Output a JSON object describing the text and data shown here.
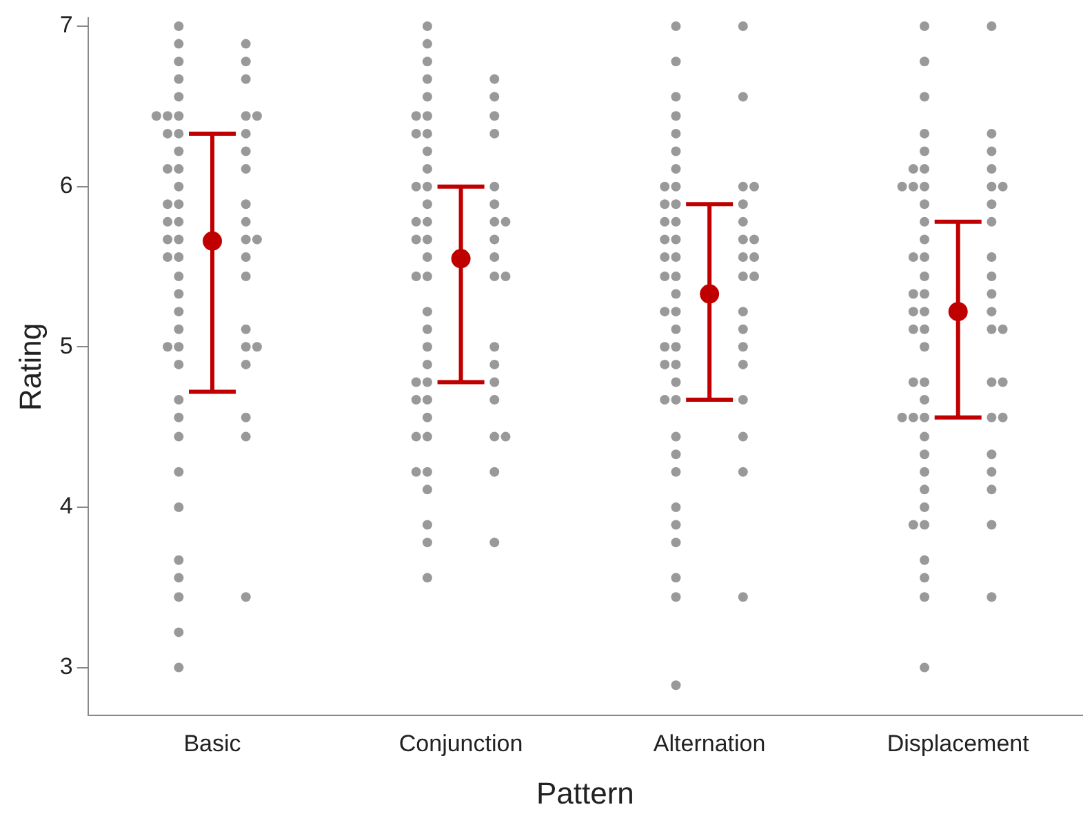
{
  "chart_data": {
    "type": "scatter",
    "xlabel": "Pattern",
    "ylabel": "Rating",
    "categories": [
      "Basic",
      "Conjunction",
      "Alternation",
      "Displacement"
    ],
    "ylim": [
      2.7,
      7.05
    ],
    "yticks": [
      3,
      4,
      5,
      6,
      7
    ],
    "grid": false,
    "marker": "circle",
    "series": [
      {
        "color": "#555555",
        "x": [
          "Basic",
          "Basic",
          "Basic",
          "Basic",
          "Basic",
          "Basic",
          "Basic",
          "Basic",
          "Basic",
          "Basic",
          "Basic",
          "Basic",
          "Basic",
          "Basic",
          "Basic",
          "Basic",
          "Basic",
          "Basic",
          "Basic",
          "Basic",
          "Basic",
          "Basic",
          "Basic",
          "Basic",
          "Basic",
          "Basic",
          "Basic",
          "Basic",
          "Basic",
          "Basic",
          "Basic",
          "Basic",
          "Basic",
          "Basic",
          "Basic",
          "Basic",
          "Basic",
          "Basic",
          "Basic",
          "Basic",
          "Basic",
          "Basic",
          "Basic",
          "Basic",
          "Basic",
          "Basic",
          "Basic",
          "Basic",
          "Basic",
          "Basic",
          "Basic",
          "Basic",
          "Basic",
          "Basic",
          "Basic",
          "Basic",
          "Basic",
          "Basic",
          "Basic",
          "Basic"
        ],
        "values": [
          7,
          6.89,
          6.89,
          6.78,
          6.78,
          6.67,
          6.67,
          6.56,
          6.44,
          6.44,
          6.44,
          6.44,
          6.44,
          6.33,
          6.33,
          6.33,
          6.22,
          6.22,
          6.11,
          6.11,
          6.11,
          6,
          5.89,
          5.89,
          5.89,
          5.78,
          5.78,
          5.78,
          5.67,
          5.67,
          5.67,
          5.67,
          5.56,
          5.56,
          5.56,
          5.44,
          5.44,
          5.33,
          5.22,
          5.11,
          5.11,
          5,
          5,
          5,
          5,
          4.89,
          4.89,
          4.67,
          4.56,
          4.56,
          4.44,
          4.44,
          4.22,
          4,
          3.67,
          3.56,
          3.44,
          3.44,
          3.22,
          3
        ]
      },
      {
        "color": "#555555",
        "x": [
          "Conjunction",
          "Conjunction",
          "Conjunction",
          "Conjunction",
          "Conjunction",
          "Conjunction",
          "Conjunction",
          "Conjunction",
          "Conjunction",
          "Conjunction",
          "Conjunction",
          "Conjunction",
          "Conjunction",
          "Conjunction",
          "Conjunction",
          "Conjunction",
          "Conjunction",
          "Conjunction",
          "Conjunction",
          "Conjunction",
          "Conjunction",
          "Conjunction",
          "Conjunction",
          "Conjunction",
          "Conjunction",
          "Conjunction",
          "Conjunction",
          "Conjunction",
          "Conjunction",
          "Conjunction",
          "Conjunction",
          "Conjunction",
          "Conjunction",
          "Conjunction",
          "Conjunction",
          "Conjunction",
          "Conjunction",
          "Conjunction",
          "Conjunction",
          "Conjunction",
          "Conjunction",
          "Conjunction",
          "Conjunction",
          "Conjunction",
          "Conjunction",
          "Conjunction",
          "Conjunction",
          "Conjunction",
          "Conjunction",
          "Conjunction",
          "Conjunction",
          "Conjunction",
          "Conjunction",
          "Conjunction",
          "Conjunction",
          "Conjunction",
          "Conjunction",
          "Conjunction"
        ],
        "values": [
          7,
          6.89,
          6.78,
          6.67,
          6.67,
          6.56,
          6.56,
          6.44,
          6.44,
          6.44,
          6.33,
          6.33,
          6.33,
          6.22,
          6.11,
          6,
          6,
          6,
          5.89,
          5.89,
          5.78,
          5.78,
          5.78,
          5.78,
          5.67,
          5.67,
          5.67,
          5.56,
          5.56,
          5.44,
          5.44,
          5.44,
          5.44,
          5.22,
          5.11,
          5,
          5,
          4.89,
          4.89,
          4.78,
          4.78,
          4.78,
          4.67,
          4.67,
          4.67,
          4.56,
          4.44,
          4.44,
          4.44,
          4.44,
          4.22,
          4.22,
          4.22,
          4.11,
          3.89,
          3.78,
          3.78,
          3.56
        ]
      },
      {
        "color": "#555555",
        "x": [
          "Alternation",
          "Alternation",
          "Alternation",
          "Alternation",
          "Alternation",
          "Alternation",
          "Alternation",
          "Alternation",
          "Alternation",
          "Alternation",
          "Alternation",
          "Alternation",
          "Alternation",
          "Alternation",
          "Alternation",
          "Alternation",
          "Alternation",
          "Alternation",
          "Alternation",
          "Alternation",
          "Alternation",
          "Alternation",
          "Alternation",
          "Alternation",
          "Alternation",
          "Alternation",
          "Alternation",
          "Alternation",
          "Alternation",
          "Alternation",
          "Alternation",
          "Alternation",
          "Alternation",
          "Alternation",
          "Alternation",
          "Alternation",
          "Alternation",
          "Alternation",
          "Alternation",
          "Alternation",
          "Alternation",
          "Alternation",
          "Alternation",
          "Alternation",
          "Alternation",
          "Alternation",
          "Alternation",
          "Alternation",
          "Alternation",
          "Alternation",
          "Alternation",
          "Alternation",
          "Alternation",
          "Alternation",
          "Alternation",
          "Alternation",
          "Alternation",
          "Alternation",
          "Alternation"
        ],
        "values": [
          7,
          7,
          6.78,
          6.56,
          6.56,
          6.44,
          6.33,
          6.22,
          6.11,
          6,
          6,
          6,
          6,
          5.89,
          5.89,
          5.89,
          5.78,
          5.78,
          5.78,
          5.67,
          5.67,
          5.67,
          5.67,
          5.56,
          5.56,
          5.56,
          5.56,
          5.44,
          5.44,
          5.44,
          5.44,
          5.33,
          5.22,
          5.22,
          5.22,
          5.11,
          5.11,
          5,
          5,
          5,
          4.89,
          4.89,
          4.89,
          4.78,
          4.67,
          4.67,
          4.67,
          4.44,
          4.44,
          4.33,
          4.22,
          4.22,
          4,
          3.89,
          3.78,
          3.56,
          3.44,
          3.44,
          2.89
        ]
      },
      {
        "color": "#555555",
        "x": [
          "Displacement",
          "Displacement",
          "Displacement",
          "Displacement",
          "Displacement",
          "Displacement",
          "Displacement",
          "Displacement",
          "Displacement",
          "Displacement",
          "Displacement",
          "Displacement",
          "Displacement",
          "Displacement",
          "Displacement",
          "Displacement",
          "Displacement",
          "Displacement",
          "Displacement",
          "Displacement",
          "Displacement",
          "Displacement",
          "Displacement",
          "Displacement",
          "Displacement",
          "Displacement",
          "Displacement",
          "Displacement",
          "Displacement",
          "Displacement",
          "Displacement",
          "Displacement",
          "Displacement",
          "Displacement",
          "Displacement",
          "Displacement",
          "Displacement",
          "Displacement",
          "Displacement",
          "Displacement",
          "Displacement",
          "Displacement",
          "Displacement",
          "Displacement",
          "Displacement",
          "Displacement",
          "Displacement",
          "Displacement",
          "Displacement",
          "Displacement",
          "Displacement",
          "Displacement",
          "Displacement",
          "Displacement",
          "Displacement",
          "Displacement",
          "Displacement",
          "Displacement",
          "Displacement",
          "Displacement",
          "Displacement",
          "Displacement",
          "Displacement"
        ],
        "values": [
          7,
          7,
          6.78,
          6.56,
          6.33,
          6.33,
          6.22,
          6.22,
          6.11,
          6.11,
          6.11,
          6,
          6,
          6,
          6,
          6,
          5.89,
          5.89,
          5.78,
          5.78,
          5.67,
          5.56,
          5.56,
          5.56,
          5.44,
          5.44,
          5.33,
          5.33,
          5.33,
          5.22,
          5.22,
          5.22,
          5.11,
          5.11,
          5.11,
          5.11,
          5,
          4.78,
          4.78,
          4.78,
          4.78,
          4.67,
          4.56,
          4.56,
          4.56,
          4.56,
          4.56,
          4.44,
          4.33,
          4.33,
          4.22,
          4.22,
          4.11,
          4.11,
          4,
          3.89,
          3.89,
          3.89,
          3.67,
          3.56,
          3.44,
          3.44,
          3
        ]
      },
      {
        "color": "#c00000",
        "values": [
          5.66,
          5.55,
          5.33,
          5.22
        ],
        "errors": [
          [
            4.72,
            6.33
          ],
          [
            4.78,
            6.0
          ],
          [
            4.67,
            5.89
          ],
          [
            4.56,
            5.78
          ]
        ]
      }
    ]
  }
}
